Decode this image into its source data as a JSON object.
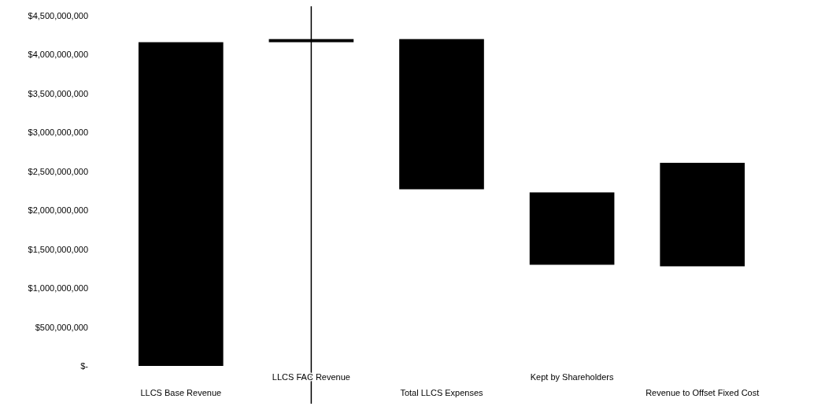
{
  "chart_data": {
    "type": "bar",
    "categories": [
      "LLCS Base Revenue",
      "LLCS FAC Revenue",
      "Total LLCS Expenses",
      "Kept by Shareholders",
      "Revenue to Offset Fixed Cost"
    ],
    "values": [
      4160000000,
      40000000,
      1930000000,
      930000000,
      1330000000
    ],
    "base": [
      0,
      4160000000,
      2270000000,
      1300000000,
      1280000000
    ],
    "color": "#000000",
    "ylim": [
      0,
      4500000000
    ],
    "yticks": [
      {
        "value": 0,
        "label": "$-"
      },
      {
        "value": 500000000,
        "label": "$500,000,000"
      },
      {
        "value": 1000000000,
        "label": "$1,000,000,000"
      },
      {
        "value": 1500000000,
        "label": "$1,500,000,000"
      },
      {
        "value": 2000000000,
        "label": "$2,000,000,000"
      },
      {
        "value": 2500000000,
        "label": "$2,500,000,000"
      },
      {
        "value": 3000000000,
        "label": "$3,000,000,000"
      },
      {
        "value": 3500000000,
        "label": "$3,500,000,000"
      },
      {
        "value": 4000000000,
        "label": "$4,000,000,000"
      },
      {
        "value": 4500000000,
        "label": "$4,500,000,000"
      }
    ],
    "ref_lines": [
      {
        "axis": "x",
        "value": "LLCS FAC Revenue",
        "color": "#000000"
      }
    ],
    "grid": false
  }
}
